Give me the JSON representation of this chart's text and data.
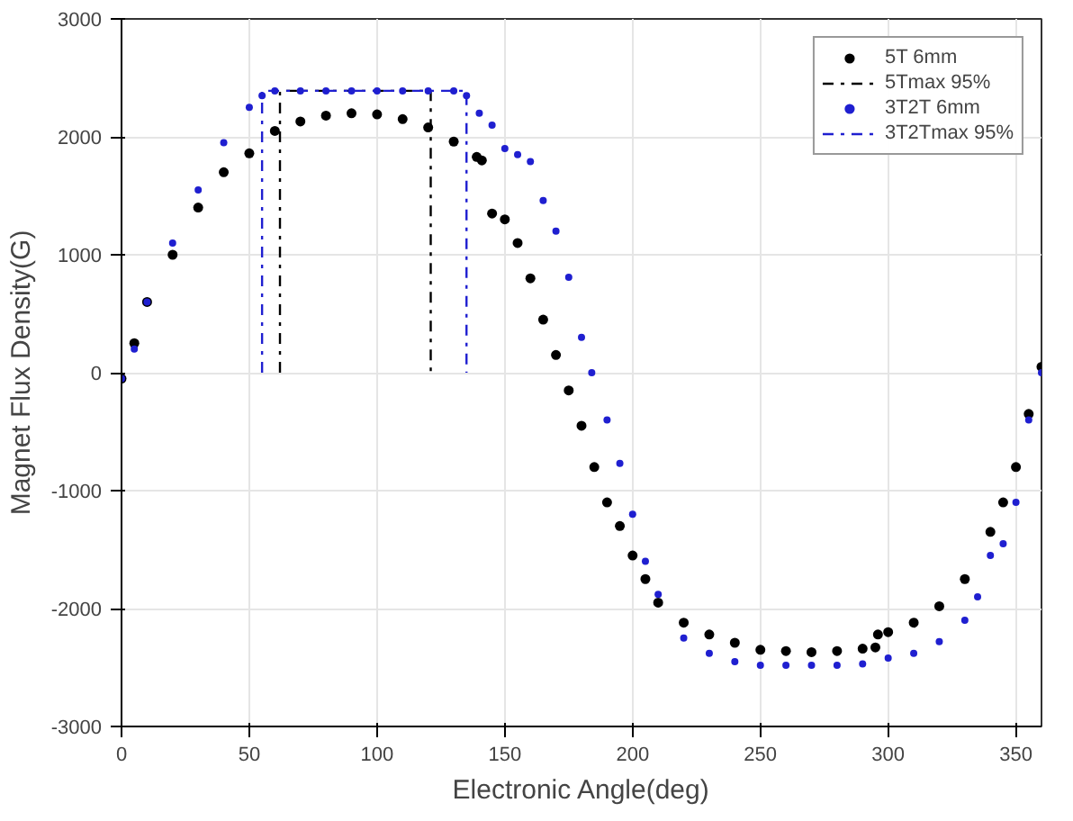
{
  "chart_data": {
    "type": "scatter",
    "xlabel": "Electronic Angle(deg)",
    "ylabel": "Magnet Flux Density(G)",
    "xlim": [
      0,
      360
    ],
    "xticks": [
      0,
      50,
      100,
      150,
      200,
      250,
      300,
      350
    ],
    "ylim": [
      -3000,
      3000
    ],
    "yticks": [
      -3000,
      -2000,
      -1000,
      0,
      1000,
      2000,
      3000
    ],
    "grid": true,
    "legend": "top right",
    "series": [
      {
        "name": "5T 6mm",
        "color": "#000000",
        "marker": "circle",
        "x": [
          0,
          5,
          10,
          20,
          30,
          40,
          50,
          60,
          70,
          80,
          90,
          100,
          110,
          120,
          130,
          139,
          141,
          145,
          150,
          155,
          160,
          165,
          170,
          175,
          180,
          185,
          190,
          195,
          200,
          205,
          210,
          220,
          230,
          240,
          250,
          260,
          270,
          280,
          290,
          295,
          296,
          300,
          310,
          320,
          330,
          340,
          345,
          350,
          355,
          360
        ],
        "values": [
          -50,
          250,
          600,
          1000,
          1400,
          1700,
          1860,
          2050,
          2130,
          2180,
          2200,
          2190,
          2150,
          2080,
          1960,
          1830,
          1800,
          1350,
          1300,
          1100,
          800,
          450,
          150,
          -150,
          -450,
          -800,
          -1100,
          -1300,
          -1550,
          -1750,
          -1950,
          -2120,
          -2220,
          -2290,
          -2350,
          -2360,
          -2370,
          -2360,
          -2340,
          -2330,
          -2220,
          -2200,
          -2120,
          -1980,
          -1750,
          -1350,
          -1100,
          -800,
          -350,
          50
        ]
      },
      {
        "name": "5Tmax 95%",
        "color": "#000000",
        "type": "line",
        "line_style": "dashdot",
        "x": [
          62,
          62,
          121,
          121
        ],
        "values": [
          0,
          2390,
          2390,
          0
        ]
      },
      {
        "name": "3T2T 6mm",
        "color": "#1f1fd0",
        "marker": "circle",
        "x": [
          0,
          5,
          10,
          20,
          30,
          40,
          50,
          55,
          60,
          70,
          80,
          90,
          100,
          110,
          120,
          130,
          135,
          140,
          145,
          150,
          155,
          160,
          165,
          170,
          175,
          180,
          184,
          190,
          195,
          200,
          205,
          210,
          220,
          230,
          240,
          250,
          260,
          270,
          280,
          290,
          300,
          310,
          320,
          330,
          335,
          340,
          345,
          350,
          355,
          360
        ],
        "values": [
          -50,
          200,
          600,
          1100,
          1550,
          1950,
          2250,
          2350,
          2390,
          2390,
          2390,
          2390,
          2390,
          2390,
          2390,
          2390,
          2350,
          2200,
          2100,
          1900,
          1850,
          1790,
          1460,
          1200,
          810,
          300,
          0,
          -400,
          -770,
          -1200,
          -1600,
          -1880,
          -2250,
          -2380,
          -2450,
          -2480,
          -2480,
          -2480,
          -2480,
          -2470,
          -2420,
          -2380,
          -2280,
          -2100,
          -1900,
          -1550,
          -1450,
          -1100,
          -400,
          0
        ]
      },
      {
        "name": "3T2Tmax 95%",
        "color": "#1f1fd0",
        "type": "line",
        "line_style": "dashdot",
        "x": [
          55,
          55,
          135,
          135
        ],
        "values": [
          0,
          2390,
          2390,
          0
        ]
      }
    ]
  }
}
